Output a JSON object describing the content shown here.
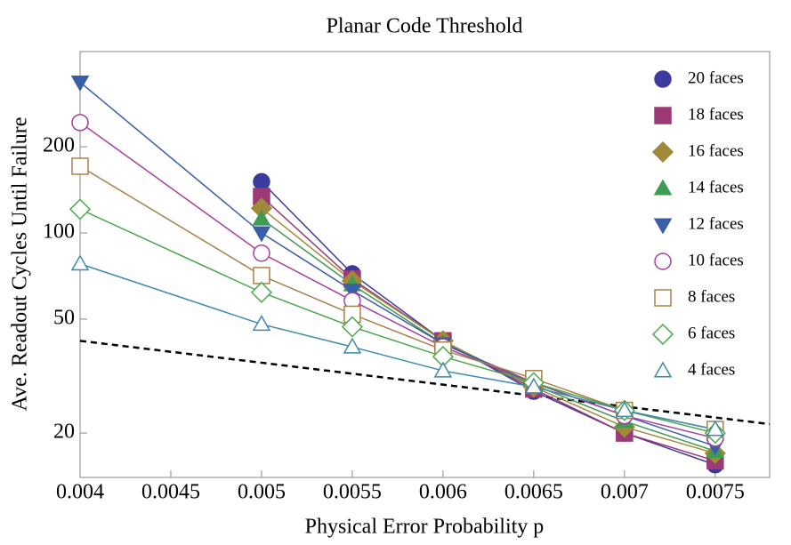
{
  "chart_data": {
    "type": "line",
    "title": "Planar Code Threshold",
    "x_label": "Physical Error Probability p",
    "y_label": "Ave. Readout Cycles Until Failure",
    "log_y": true,
    "x": [
      0.004,
      0.005,
      0.0055,
      0.006,
      0.0065,
      0.007,
      0.0075
    ],
    "xlim": [
      0.004,
      0.0078
    ],
    "xticks": [
      0.004,
      0.0045,
      0.005,
      0.0055,
      0.006,
      0.0065,
      0.007,
      0.0075
    ],
    "ylim": [
      14,
      430
    ],
    "yticks": [
      20,
      50,
      100,
      200
    ],
    "legend": "top-right",
    "series": [
      {
        "name": "20 faces",
        "color": "#3b3b9e",
        "marker": "circle",
        "filled": true,
        "values": [
          null,
          151,
          72,
          42,
          28,
          20,
          15.5
        ]
      },
      {
        "name": "18 faces",
        "color": "#9b3a74",
        "marker": "square",
        "filled": true,
        "values": [
          null,
          134,
          69,
          42,
          28.5,
          20,
          16
        ]
      },
      {
        "name": "16 faces",
        "color": "#a08a3a",
        "marker": "diamond",
        "filled": true,
        "values": [
          null,
          122,
          68,
          42,
          29,
          21,
          17
        ]
      },
      {
        "name": "14 faces",
        "color": "#3f9a52",
        "marker": "triangle-up",
        "filled": true,
        "values": [
          null,
          112,
          66,
          41,
          29.5,
          22,
          17.3
        ]
      },
      {
        "name": "12 faces",
        "color": "#3a5fa8",
        "marker": "triangle-down",
        "filled": true,
        "values": [
          336,
          100,
          63,
          41,
          30,
          23,
          18
        ]
      },
      {
        "name": "10 faces",
        "color": "#a83fa0",
        "marker": "circle",
        "filled": false,
        "values": [
          243,
          85,
          58,
          40,
          30,
          23,
          19.2
        ]
      },
      {
        "name": "8 faces",
        "color": "#a8804a",
        "marker": "square",
        "filled": false,
        "values": [
          171,
          71,
          52,
          39,
          31,
          24,
          20.6
        ]
      },
      {
        "name": "6 faces",
        "color": "#4aa84a",
        "marker": "diamond",
        "filled": false,
        "values": [
          121,
          62,
          47,
          37,
          30,
          24,
          20
        ]
      },
      {
        "name": "4 faces",
        "color": "#3f88b0",
        "marker": "triangle-up",
        "filled": false,
        "values": [
          78,
          48,
          40,
          33,
          29,
          24,
          20.6
        ]
      }
    ],
    "reference_line": {
      "x": [
        0.004,
        0.0078
      ],
      "values": [
        42,
        21.5
      ],
      "color": "#000000",
      "dashed": true
    }
  }
}
